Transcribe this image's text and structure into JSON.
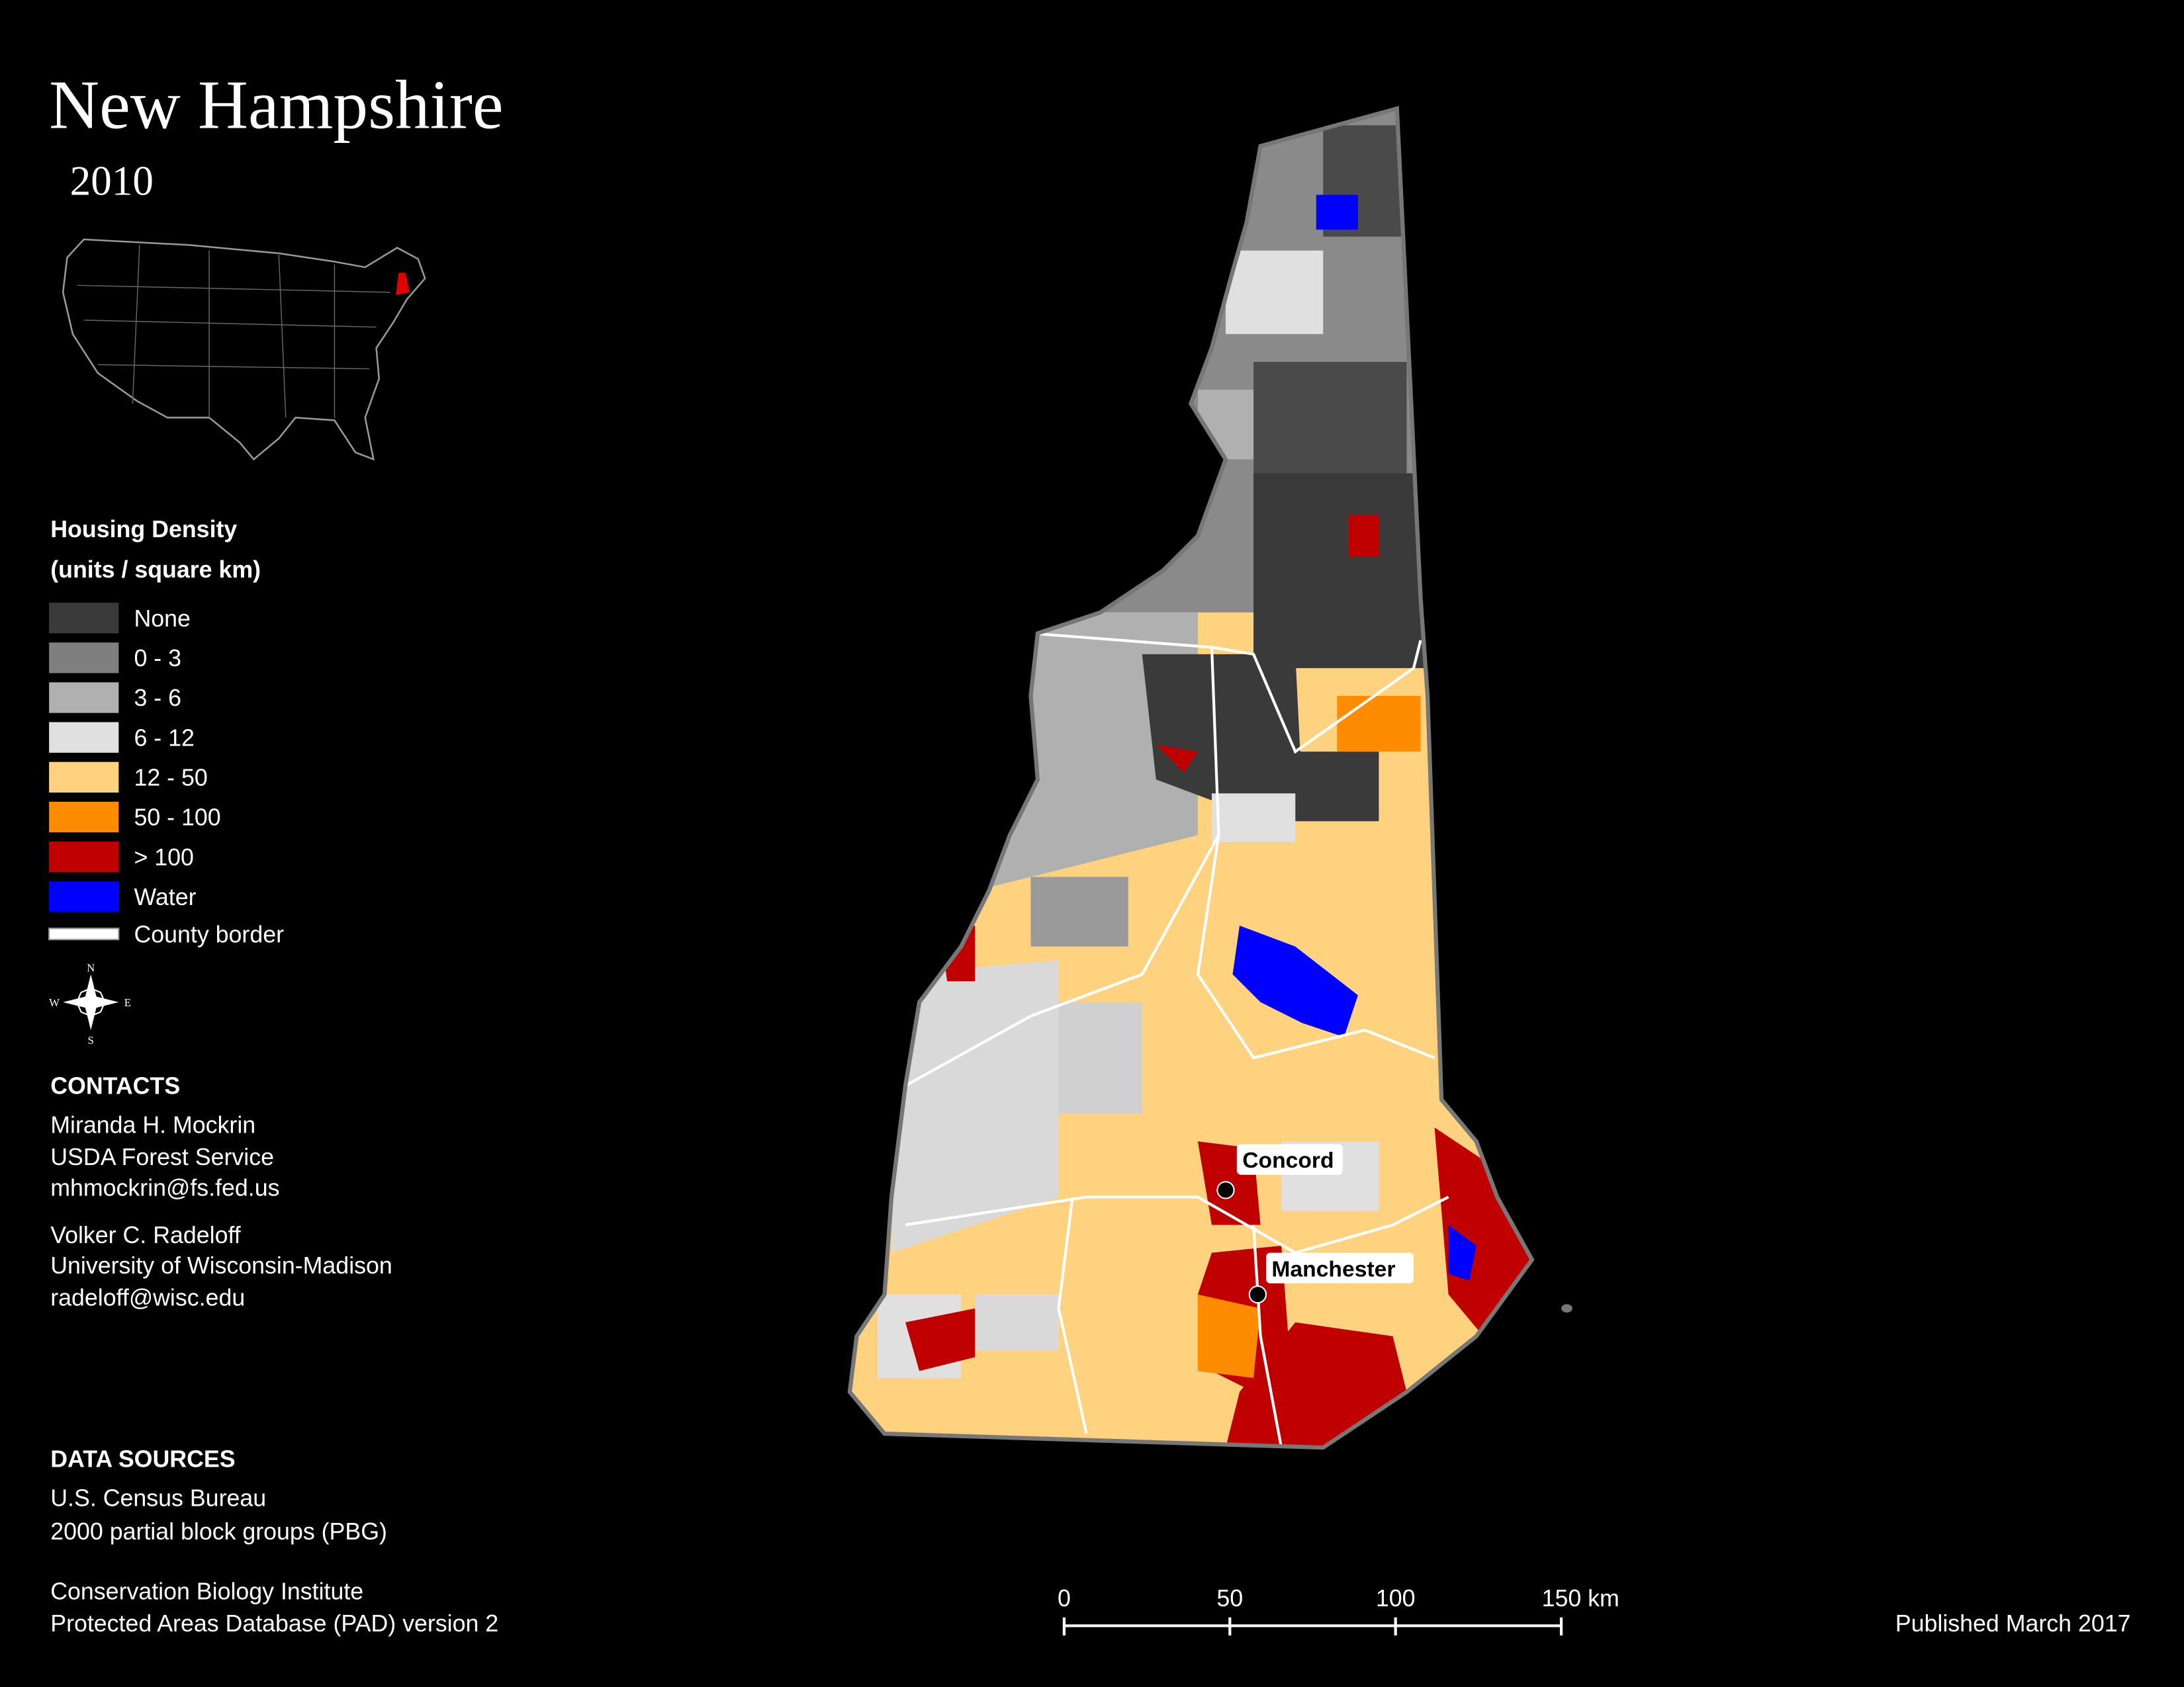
{
  "header": {
    "title": "New Hampshire",
    "year": "2010"
  },
  "legend": {
    "title": "Housing Density",
    "subtitle": "(units / square km)",
    "items": [
      {
        "label": "None",
        "color": "#3a3a3a"
      },
      {
        "label": "0 - 3",
        "color": "#7f7f7f"
      },
      {
        "label": "3 - 6",
        "color": "#b0b0b0"
      },
      {
        "label": "6 - 12",
        "color": "#e0e0e0"
      },
      {
        "label": "12 - 50",
        "color": "#ffd27f"
      },
      {
        "label": "50 - 100",
        "color": "#ff8c00"
      },
      {
        "label": "> 100",
        "color": "#c00000"
      },
      {
        "label": "Water",
        "color": "#0000ff"
      }
    ],
    "border": {
      "label": "County border"
    }
  },
  "compass": {
    "n": "N",
    "s": "S",
    "e": "E",
    "w": "W"
  },
  "cities": [
    {
      "label": "Concord"
    },
    {
      "label": "Manchester"
    }
  ],
  "contacts": {
    "heading": "CONTACTS",
    "people": [
      [
        "Miranda H. Mockrin",
        "USDA Forest Service",
        "mhmockrin@fs.fed.us"
      ],
      [
        "Volker C. Radeloff",
        "University of Wisconsin-Madison",
        "radeloff@wisc.edu"
      ]
    ]
  },
  "data_sources": {
    "heading": "DATA SOURCES",
    "groups": [
      [
        "U.S. Census Bureau",
        "2000 partial block groups (PBG)"
      ],
      [
        "Conservation Biology Institute",
        "Protected Areas Database (PAD) version 2"
      ]
    ]
  },
  "scale_bar": {
    "labels": [
      "0",
      "50",
      "100",
      "150 km"
    ]
  },
  "footer": {
    "published": "Published March 2017"
  }
}
